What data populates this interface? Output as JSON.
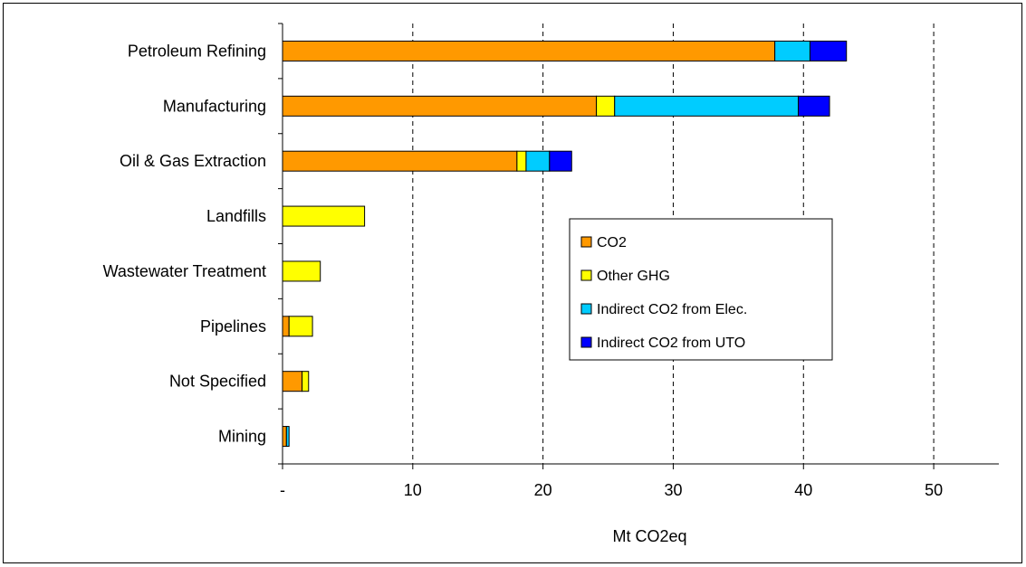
{
  "chart_data": {
    "type": "bar",
    "orientation": "horizontal",
    "stacked": true,
    "categories": [
      "Petroleum Refining",
      "Manufacturing",
      "Oil & Gas Extraction",
      "Landfills",
      "Wastewater Treatment",
      "Pipelines",
      "Not Specified",
      "Mining"
    ],
    "series": [
      {
        "name": "CO2",
        "color": "#FF9900",
        "values": [
          37.8,
          24.1,
          18.0,
          0,
          0,
          0.5,
          1.5,
          0.3
        ]
      },
      {
        "name": "Other GHG",
        "color": "#FFFF00",
        "values": [
          0,
          1.4,
          0.7,
          6.3,
          2.9,
          1.8,
          0.5,
          0
        ]
      },
      {
        "name": "Indirect CO2 from Elec.",
        "color": "#00CCFF",
        "values": [
          2.7,
          14.1,
          1.8,
          0,
          0,
          0,
          0,
          0.2
        ]
      },
      {
        "name": "Indirect CO2 from UTO",
        "color": "#0000FF",
        "values": [
          2.8,
          2.4,
          1.7,
          0,
          0,
          0,
          0,
          0
        ]
      }
    ],
    "xlabel": "Mt CO2eq",
    "xlim": [
      0,
      55
    ],
    "xticks": [
      0,
      10,
      20,
      30,
      40,
      50
    ],
    "xtick_labels": [
      "-",
      "10",
      "20",
      "30",
      "40",
      "50"
    ],
    "grid": "vertical dashed",
    "legend_position": "center-right"
  }
}
